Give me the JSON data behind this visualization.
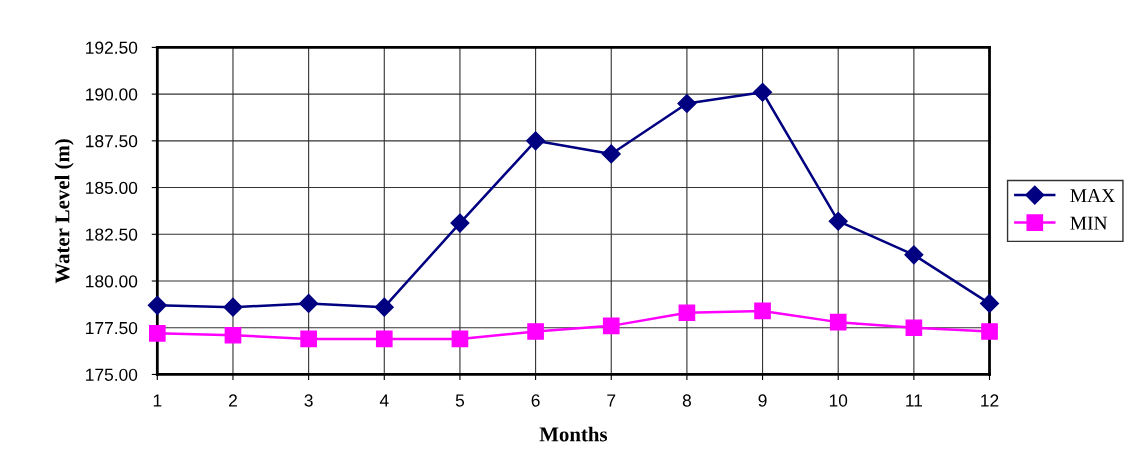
{
  "chart_data": {
    "type": "line",
    "xlabel": "Months",
    "ylabel": "Water Level (m)",
    "x": [
      1,
      2,
      3,
      4,
      5,
      6,
      7,
      8,
      9,
      10,
      11,
      12
    ],
    "xlim": [
      1,
      12
    ],
    "xticks": [
      1,
      2,
      3,
      4,
      5,
      6,
      7,
      8,
      9,
      10,
      11,
      12
    ],
    "ylim": [
      175,
      192.5
    ],
    "yticks": [
      {
        "value": 175,
        "label": "175.00"
      },
      {
        "value": 177.5,
        "label": "177.50"
      },
      {
        "value": 180,
        "label": "180.00"
      },
      {
        "value": 182.5,
        "label": "182.50"
      },
      {
        "value": 185,
        "label": "185.00"
      },
      {
        "value": 187.5,
        "label": "187.50"
      },
      {
        "value": 190,
        "label": "190.00"
      },
      {
        "value": 192.5,
        "label": "192.50"
      }
    ],
    "grid": true,
    "legend": "right",
    "line_style": "solid",
    "series": [
      {
        "name": "MAX",
        "color": "#000080",
        "marker": "diamond",
        "values": [
          178.7,
          178.6,
          178.8,
          178.6,
          183.1,
          187.5,
          186.8,
          189.5,
          190.1,
          183.2,
          181.4,
          178.8
        ]
      },
      {
        "name": "MIN",
        "color": "#ff00ff",
        "marker": "square",
        "values": [
          177.2,
          177.1,
          176.9,
          176.9,
          176.9,
          177.3,
          177.6,
          178.3,
          178.4,
          177.8,
          177.5,
          177.3
        ]
      }
    ]
  }
}
